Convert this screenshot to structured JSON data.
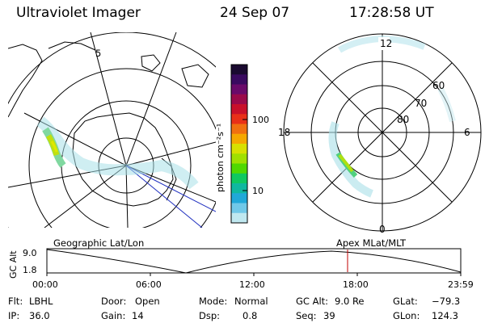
{
  "header": {
    "title": "Ultraviolet Imager",
    "date": "24 Sep 07",
    "time": "17:28:58 UT"
  },
  "left_map": {
    "coord_label": "Geographic Lat/Lon",
    "grid_label": "5"
  },
  "colorbar": {
    "unit_label": "photon cm⁻²s⁻¹",
    "ticks": [
      "100",
      "10"
    ],
    "colors": [
      "#1a0a30",
      "#3a0a60",
      "#6a0a6a",
      "#9a0a4a",
      "#c8102a",
      "#e83018",
      "#f07010",
      "#f5a800",
      "#d8e000",
      "#a0e000",
      "#50d800",
      "#10c860",
      "#10b8a0",
      "#20a8d8",
      "#70c8e8",
      "#c0e8f0"
    ]
  },
  "right_map": {
    "coord_label": "Apex MLat/MLT",
    "lat_labels": [
      "60",
      "70",
      "80"
    ],
    "mlt_labels": [
      "12",
      "18",
      "6",
      "0"
    ]
  },
  "timeline": {
    "y_axis_label": "GC Alt",
    "y_ticks": [
      "9.0",
      "1.8"
    ],
    "x_ticks": [
      "00:00",
      "06:00",
      "12:00",
      "18:00",
      "23:59"
    ],
    "current_time_color": "#c00000"
  },
  "status": {
    "flt_label": "Flt:",
    "flt_value": "LBHL",
    "ip_label": "IP:",
    "ip_value": "36.0",
    "door_label": "Door:",
    "door_value": "Open",
    "gain_label": "Gain:",
    "gain_value": "14",
    "mode_label": "Mode:",
    "mode_value": "Normal",
    "dsp_label": "Dsp:",
    "dsp_value": "0.8",
    "gcalt_label": "GC Alt:",
    "gcalt_value": "9.0 Re",
    "seq_label": "Seq:",
    "seq_value": "39",
    "glat_label": "GLat:",
    "glat_value": "−79.3",
    "glon_label": "GLon:",
    "glon_value": "124.3"
  }
}
